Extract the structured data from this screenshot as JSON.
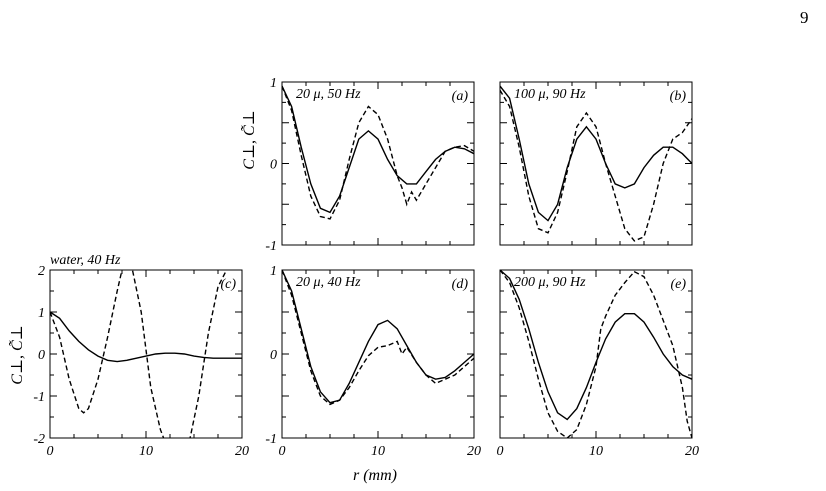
{
  "page_number": "9",
  "common_xlabel": "r (mm)",
  "ylabel": "C⊥, C̃⊥",
  "chart_data": [
    {
      "panel": "(a)",
      "type": "line",
      "label": "20 μ, 50 Hz",
      "xlim": [
        0,
        20
      ],
      "ylim": [
        -1,
        1
      ],
      "xticks": [
        0,
        10,
        20
      ],
      "yticks": [
        -1,
        0,
        1
      ],
      "series": [
        {
          "style": "solid",
          "x": [
            0,
            1,
            2,
            3,
            4,
            5,
            6,
            7,
            8,
            9,
            10,
            11,
            12,
            13,
            14,
            15,
            16,
            17,
            18,
            19,
            20
          ],
          "y": [
            0.95,
            0.7,
            0.2,
            -0.25,
            -0.55,
            -0.6,
            -0.4,
            -0.05,
            0.3,
            0.4,
            0.3,
            0.05,
            -0.15,
            -0.25,
            -0.25,
            -0.1,
            0.05,
            0.15,
            0.2,
            0.18,
            0.12
          ]
        },
        {
          "style": "dashed",
          "x": [
            0,
            1,
            2,
            3,
            4,
            5,
            6,
            7,
            8,
            9,
            10,
            11,
            12,
            12.5,
            13,
            13.5,
            14,
            15,
            16,
            17,
            18,
            19,
            20
          ],
          "y": [
            0.95,
            0.65,
            0.1,
            -0.4,
            -0.65,
            -0.68,
            -0.45,
            0.05,
            0.5,
            0.7,
            0.6,
            0.3,
            -0.15,
            -0.3,
            -0.5,
            -0.35,
            -0.45,
            -0.25,
            -0.05,
            0.15,
            0.2,
            0.22,
            0.15
          ]
        }
      ]
    },
    {
      "panel": "(b)",
      "type": "line",
      "label": "100 μ, 90 Hz",
      "xlim": [
        0,
        20
      ],
      "ylim": [
        -1,
        1
      ],
      "xticks": [
        0,
        10,
        20
      ],
      "yticks": [
        -1,
        0,
        1
      ],
      "series": [
        {
          "style": "solid",
          "x": [
            0,
            1,
            2,
            3,
            4,
            5,
            6,
            7,
            8,
            9,
            10,
            11,
            12,
            13,
            14,
            15,
            16,
            17,
            18,
            19,
            20
          ],
          "y": [
            0.95,
            0.8,
            0.3,
            -0.25,
            -0.6,
            -0.7,
            -0.5,
            -0.05,
            0.3,
            0.45,
            0.3,
            -0.0,
            -0.25,
            -0.3,
            -0.25,
            -0.05,
            0.1,
            0.2,
            0.2,
            0.12,
            0.0
          ]
        },
        {
          "style": "dashed",
          "x": [
            0,
            1,
            2,
            3,
            4,
            5,
            6,
            7,
            8,
            9,
            10,
            11,
            12,
            13,
            14,
            15,
            16,
            17,
            18,
            19,
            20
          ],
          "y": [
            0.9,
            0.7,
            0.2,
            -0.4,
            -0.8,
            -0.85,
            -0.6,
            -0.1,
            0.45,
            0.62,
            0.45,
            0.0,
            -0.4,
            -0.8,
            -0.95,
            -0.9,
            -0.5,
            0.0,
            0.3,
            0.38,
            0.55
          ]
        }
      ]
    },
    {
      "panel": "(c)",
      "type": "line",
      "label": "water, 40 Hz",
      "xlim": [
        0,
        20
      ],
      "ylim": [
        -2,
        2
      ],
      "xticks": [
        0,
        10,
        20
      ],
      "yticks": [
        -2,
        -1,
        0,
        1,
        2
      ],
      "series": [
        {
          "style": "solid",
          "x": [
            0,
            1,
            2,
            3,
            4,
            5,
            6,
            7,
            8,
            9,
            10,
            11,
            12,
            13,
            14,
            15,
            16,
            17,
            18,
            19,
            20
          ],
          "y": [
            1.0,
            0.85,
            0.55,
            0.3,
            0.1,
            -0.05,
            -0.15,
            -0.18,
            -0.15,
            -0.1,
            -0.05,
            0.0,
            0.02,
            0.02,
            0.0,
            -0.05,
            -0.08,
            -0.1,
            -0.1,
            -0.1,
            -0.1
          ]
        },
        {
          "style": "dashed",
          "x": [
            0,
            1,
            2,
            3,
            3.5,
            4,
            5,
            6,
            7,
            7.5,
            8.5,
            9.5,
            10.5,
            11.5,
            12,
            14.5,
            15.5,
            16.5,
            17.5,
            18.5,
            19.5
          ],
          "y": [
            1.0,
            0.4,
            -0.6,
            -1.3,
            -1.4,
            -1.3,
            -0.6,
            0.4,
            1.5,
            2.0,
            2.1,
            1.0,
            -0.8,
            -1.8,
            -2.1,
            -2.1,
            -1.0,
            0.5,
            1.6,
            2.05,
            2.05
          ]
        }
      ]
    },
    {
      "panel": "(d)",
      "type": "line",
      "label": "20 μ, 40 Hz",
      "xlim": [
        0,
        20
      ],
      "ylim": [
        -1,
        1
      ],
      "xticks": [
        0,
        10,
        20
      ],
      "yticks": [
        -1,
        0,
        1
      ],
      "series": [
        {
          "style": "solid",
          "x": [
            0,
            1,
            2,
            3,
            4,
            5,
            6,
            7,
            8,
            9,
            10,
            11,
            12,
            13,
            14,
            15,
            16,
            17,
            18,
            19,
            20
          ],
          "y": [
            1.0,
            0.75,
            0.3,
            -0.15,
            -0.45,
            -0.58,
            -0.55,
            -0.35,
            -0.1,
            0.15,
            0.35,
            0.4,
            0.3,
            0.1,
            -0.1,
            -0.25,
            -0.3,
            -0.28,
            -0.2,
            -0.1,
            0.0
          ]
        },
        {
          "style": "dashed",
          "x": [
            0,
            1,
            2,
            3,
            4,
            5,
            6,
            7,
            8,
            9,
            10,
            11,
            12,
            12.5,
            13,
            14,
            15,
            16,
            17,
            18,
            19,
            20
          ],
          "y": [
            1.0,
            0.7,
            0.25,
            -0.2,
            -0.5,
            -0.6,
            -0.55,
            -0.4,
            -0.2,
            -0.02,
            0.08,
            0.1,
            0.15,
            0.0,
            0.08,
            -0.1,
            -0.25,
            -0.35,
            -0.3,
            -0.25,
            -0.15,
            -0.05
          ]
        }
      ]
    },
    {
      "panel": "(e)",
      "type": "line",
      "label": "200 μ, 90 Hz",
      "xlim": [
        0,
        20
      ],
      "ylim": [
        -1,
        1
      ],
      "xticks": [
        0,
        10,
        20
      ],
      "yticks": [
        -1,
        0,
        1
      ],
      "series": [
        {
          "style": "solid",
          "x": [
            0,
            1,
            2,
            3,
            4,
            5,
            6,
            7,
            8,
            9,
            10,
            11,
            12,
            13,
            14,
            15,
            16,
            17,
            18,
            19,
            20
          ],
          "y": [
            1.0,
            0.9,
            0.65,
            0.3,
            -0.1,
            -0.45,
            -0.7,
            -0.78,
            -0.65,
            -0.4,
            -0.1,
            0.18,
            0.38,
            0.48,
            0.48,
            0.38,
            0.2,
            0.0,
            -0.15,
            -0.25,
            -0.3
          ]
        },
        {
          "style": "dashed",
          "x": [
            0,
            1,
            2,
            3,
            4,
            5,
            6,
            7,
            8,
            9,
            10,
            10.5,
            11,
            12,
            13,
            14,
            15,
            16,
            17,
            18,
            19,
            19.5,
            20
          ],
          "y": [
            1.0,
            0.85,
            0.55,
            0.15,
            -0.3,
            -0.7,
            -0.92,
            -1.0,
            -0.9,
            -0.6,
            -0.15,
            0.3,
            0.45,
            0.7,
            0.85,
            0.98,
            0.92,
            0.7,
            0.4,
            0.1,
            -0.4,
            -0.8,
            -1.0
          ]
        }
      ]
    }
  ]
}
